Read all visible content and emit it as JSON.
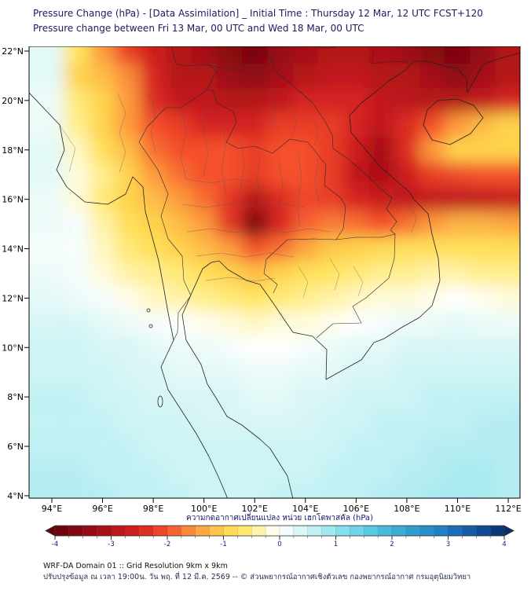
{
  "header": {
    "title": "Pressure Change (hPa) - [Data Assimilation] _ Initial Time : Thursday 12 Mar, 12 UTC FCST+120",
    "subtitle": "Pressure change between Fri 13 Mar, 00 UTC and Wed 18 Mar, 00 UTC"
  },
  "axes": {
    "lat": [
      "22°N",
      "20°N",
      "18°N",
      "16°N",
      "14°N",
      "12°N",
      "10°N",
      "8°N",
      "6°N",
      "4°N"
    ],
    "lon": [
      "94°E",
      "96°E",
      "98°E",
      "100°E",
      "102°E",
      "104°E",
      "106°E",
      "108°E",
      "110°E",
      "112°E"
    ]
  },
  "colorbar": {
    "label": "ความกดอากาศเปลี่ยนแปลง หน่วย เฮกโตพาสคัล (hPa)",
    "ticks": [
      "-4",
      "-3",
      "-2",
      "-1",
      "0",
      "1",
      "2",
      "3",
      "4"
    ],
    "min": -4,
    "max": 4,
    "segment_step": 0.25,
    "units": "hPa"
  },
  "footer": {
    "line1": "WRF-DA Domain 01 :: Grid Resolution 9km x 9km",
    "line2": "ปรับปรุงข้อมูล ณ เวลา 19:00น. วัน พฤ. ที่ 12 มี.ค. 2569 -- © ส่วนพยากรณ์อากาศเชิงตัวเลข กองพยากรณ์อากาศ กรมอุตุนิยมวิทยา"
  },
  "chart_data": {
    "type": "heatmap",
    "title": "Pressure change (hPa) between Fri 13 Mar 00 UTC and Wed 18 Mar 00 UTC, WRF-DA Domain 01",
    "value_units": "hPa",
    "value_range": [
      -4,
      4
    ],
    "lon_ticks_deg_east": [
      94,
      96,
      98,
      100,
      102,
      104,
      106,
      108,
      110,
      112
    ],
    "lat_ticks_deg_north": [
      22,
      20,
      18,
      16,
      14,
      12,
      10,
      8,
      6,
      4
    ],
    "legend_position": "bottom",
    "grid_lines": false,
    "colormap": [
      [
        -4,
        "#67000d"
      ],
      [
        -3.5,
        "#8b0a12"
      ],
      [
        -3,
        "#b41319"
      ],
      [
        -2.5,
        "#d52221"
      ],
      [
        -2,
        "#f4502c"
      ],
      [
        -1.5,
        "#fd9a3e"
      ],
      [
        -1,
        "#fed34c"
      ],
      [
        -0.7,
        "#ffe55e"
      ],
      [
        -0.45,
        "#fff099"
      ],
      [
        -0.2,
        "#fffbd9"
      ],
      [
        0,
        "#ffffff"
      ],
      [
        0.2,
        "#edfbf9"
      ],
      [
        0.5,
        "#cff4f5"
      ],
      [
        0.8,
        "#a9eaf1"
      ],
      [
        1,
        "#93e4ef"
      ],
      [
        1.5,
        "#62cfe5"
      ],
      [
        2,
        "#3fb4d8"
      ],
      [
        2.5,
        "#2b96cc"
      ],
      [
        3,
        "#1f77c0"
      ],
      [
        3.5,
        "#1352a0"
      ],
      [
        4,
        "#08306b"
      ]
    ],
    "grid": {
      "lons": [
        94,
        95,
        96,
        97,
        98,
        99,
        100,
        101,
        102,
        103,
        104,
        105,
        106,
        107,
        108,
        109,
        110,
        111,
        112
      ],
      "lats": [
        22,
        21,
        20,
        19,
        18,
        17,
        16,
        15,
        14,
        13,
        12,
        11,
        10,
        9,
        8,
        7,
        6,
        5,
        4
      ],
      "values": [
        [
          0.3,
          -0.7,
          -1.5,
          -2.2,
          -2.6,
          -3,
          -3.2,
          -3.6,
          -3.7,
          -3.4,
          -3.2,
          -3,
          -3,
          -3.1,
          -3.3,
          -3.6,
          -3.7,
          -3.4,
          -3
        ],
        [
          0.3,
          -1,
          -1.2,
          -1.6,
          -2.5,
          -3,
          -3,
          -3.3,
          -3.5,
          -3.2,
          -3,
          -2.8,
          -2.8,
          -3,
          -3,
          -3.2,
          -3.5,
          -3.2,
          -3
        ],
        [
          0.2,
          -0.6,
          -1,
          -1.5,
          -2.4,
          -2.8,
          -2.8,
          -3,
          -3,
          -2.8,
          -2.5,
          -2.5,
          -2.5,
          -2.8,
          -2.9,
          -3,
          -3,
          -2.8,
          -2.5
        ],
        [
          0.2,
          -0.5,
          -1,
          -1.5,
          -2,
          -2.2,
          -2.5,
          -2.5,
          -2.5,
          -2.2,
          -2.2,
          -2.2,
          -2.5,
          -2.8,
          -2.4,
          -2,
          -1.5,
          -1.2,
          -1
        ],
        [
          0.3,
          -0.3,
          -0.8,
          -1.2,
          -1.8,
          -2,
          -2,
          -2,
          -2.2,
          -2,
          -2,
          -2.2,
          -2.6,
          -3.2,
          -2.4,
          -1.5,
          -1,
          -1,
          -1
        ],
        [
          0.3,
          -0.2,
          -0.5,
          -1,
          -1.5,
          -1.8,
          -2,
          -2,
          -2.2,
          -2,
          -2,
          -2.2,
          -2.8,
          -3.1,
          -2.6,
          -2.2,
          -2.1,
          -2,
          -2
        ],
        [
          0.2,
          -0.2,
          -0.6,
          -1,
          -1.2,
          -1.5,
          -1.8,
          -2.3,
          -3,
          -2.4,
          -2.1,
          -2.2,
          -2.5,
          -2.7,
          -2.8,
          -2.8,
          -2.8,
          -2.8,
          -2.7
        ],
        [
          0.2,
          0.1,
          -0.4,
          -0.8,
          -1,
          -1.2,
          -1.5,
          -2.3,
          -3.7,
          -2.5,
          -1.9,
          -1.7,
          -1.8,
          -2,
          -1.8,
          -1.5,
          -1.3,
          -1.3,
          -1.4
        ],
        [
          0.1,
          0.1,
          -0.3,
          -0.6,
          -0.8,
          -1,
          -1.2,
          -1.5,
          -2,
          -1.8,
          -1.4,
          -1.1,
          -1,
          -0.9,
          -0.8,
          -0.8,
          -0.8,
          -0.8,
          -0.8
        ],
        [
          0.2,
          0.1,
          -0.2,
          -0.4,
          -0.5,
          -0.6,
          -0.8,
          -1,
          -1.2,
          -1,
          -0.8,
          -0.7,
          -0.6,
          -0.5,
          -0.5,
          -0.4,
          -0.4,
          -0.5,
          -0.5
        ],
        [
          0.3,
          0.2,
          0.1,
          -0.1,
          -0.3,
          -0.4,
          -0.5,
          -0.6,
          -0.7,
          -0.6,
          -0.5,
          -0.4,
          -0.3,
          -0.2,
          -0.2,
          -0.1,
          0,
          -0.1,
          -0.2
        ],
        [
          0.4,
          0.4,
          0.3,
          0.2,
          0.1,
          0,
          -0.1,
          -0.2,
          -0.3,
          -0.2,
          -0.2,
          -0.1,
          0,
          0.1,
          0.2,
          0.2,
          0.3,
          0.2,
          0.2
        ],
        [
          0.5,
          0.5,
          0.4,
          0.4,
          0.3,
          0.2,
          0.2,
          0.1,
          0,
          0,
          0.1,
          0.2,
          0.3,
          0.3,
          0.4,
          0.4,
          0.4,
          0.4,
          0.4
        ],
        [
          0.5,
          0.5,
          0.5,
          0.4,
          0.4,
          0.3,
          0.3,
          0.3,
          0.2,
          0.2,
          0.3,
          0.3,
          0.4,
          0.4,
          0.5,
          0.5,
          0.5,
          0.5,
          0.5
        ],
        [
          0.6,
          0.6,
          0.5,
          0.5,
          0.4,
          0.4,
          0.4,
          0.4,
          0.3,
          0.3,
          0.4,
          0.4,
          0.5,
          0.5,
          0.5,
          0.6,
          0.6,
          0.6,
          0.6
        ],
        [
          0.6,
          0.6,
          0.6,
          0.5,
          0.5,
          0.5,
          0.4,
          0.4,
          0.4,
          0.4,
          0.4,
          0.5,
          0.5,
          0.6,
          0.6,
          0.6,
          0.6,
          0.7,
          0.7
        ],
        [
          0.6,
          0.6,
          0.6,
          0.6,
          0.5,
          0.5,
          0.5,
          0.5,
          0.5,
          0.5,
          0.5,
          0.5,
          0.6,
          0.6,
          0.6,
          0.7,
          0.7,
          0.7,
          0.7
        ],
        [
          0.7,
          0.7,
          0.6,
          0.6,
          0.6,
          0.5,
          0.5,
          0.5,
          0.5,
          0.5,
          0.5,
          0.6,
          0.6,
          0.6,
          0.7,
          0.7,
          0.8,
          0.8,
          0.7
        ],
        [
          0.7,
          0.7,
          0.7,
          0.6,
          0.6,
          0.6,
          0.5,
          0.5,
          0.5,
          0.6,
          0.6,
          0.6,
          0.6,
          0.7,
          0.7,
          0.8,
          0.8,
          0.8,
          0.7
        ]
      ]
    }
  }
}
